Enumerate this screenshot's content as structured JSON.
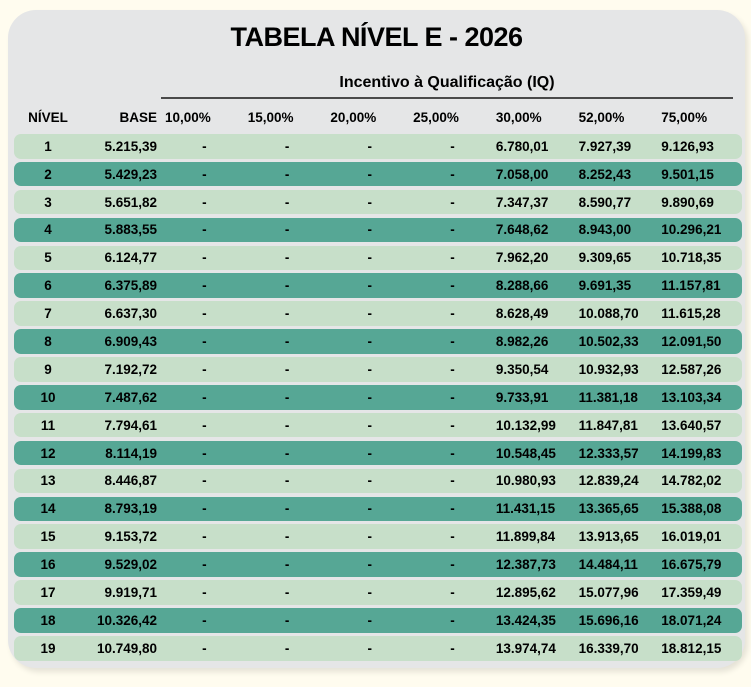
{
  "title": "TABELA NÍVEL E - 2026",
  "table": {
    "group_header": "Incentivo à Qualificação (IQ)",
    "columns": [
      "NÍVEL",
      "BASE",
      "10,00%",
      "15,00%",
      "20,00%",
      "25,00%",
      "30,00%",
      "52,00%",
      "75,00%"
    ],
    "rows": [
      [
        "1",
        "5.215,39",
        "-",
        "-",
        "-",
        "-",
        "6.780,01",
        "7.927,39",
        "9.126,93"
      ],
      [
        "2",
        "5.429,23",
        "-",
        "-",
        "-",
        "-",
        "7.058,00",
        "8.252,43",
        "9.501,15"
      ],
      [
        "3",
        "5.651,82",
        "-",
        "-",
        "-",
        "-",
        "7.347,37",
        "8.590,77",
        "9.890,69"
      ],
      [
        "4",
        "5.883,55",
        "-",
        "-",
        "-",
        "-",
        "7.648,62",
        "8.943,00",
        "10.296,21"
      ],
      [
        "5",
        "6.124,77",
        "-",
        "-",
        "-",
        "-",
        "7.962,20",
        "9.309,65",
        "10.718,35"
      ],
      [
        "6",
        "6.375,89",
        "-",
        "-",
        "-",
        "-",
        "8.288,66",
        "9.691,35",
        "11.157,81"
      ],
      [
        "7",
        "6.637,30",
        "-",
        "-",
        "-",
        "-",
        "8.628,49",
        "10.088,70",
        "11.615,28"
      ],
      [
        "8",
        "6.909,43",
        "-",
        "-",
        "-",
        "-",
        "8.982,26",
        "10.502,33",
        "12.091,50"
      ],
      [
        "9",
        "7.192,72",
        "-",
        "-",
        "-",
        "-",
        "9.350,54",
        "10.932,93",
        "12.587,26"
      ],
      [
        "10",
        "7.487,62",
        "-",
        "-",
        "-",
        "-",
        "9.733,91",
        "11.381,18",
        "13.103,34"
      ],
      [
        "11",
        "7.794,61",
        "-",
        "-",
        "-",
        "-",
        "10.132,99",
        "11.847,81",
        "13.640,57"
      ],
      [
        "12",
        "8.114,19",
        "-",
        "-",
        "-",
        "-",
        "10.548,45",
        "12.333,57",
        "14.199,83"
      ],
      [
        "13",
        "8.446,87",
        "-",
        "-",
        "-",
        "-",
        "10.980,93",
        "12.839,24",
        "14.782,02"
      ],
      [
        "14",
        "8.793,19",
        "-",
        "-",
        "-",
        "-",
        "11.431,15",
        "13.365,65",
        "15.388,08"
      ],
      [
        "15",
        "9.153,72",
        "-",
        "-",
        "-",
        "-",
        "11.899,84",
        "13.913,65",
        "16.019,01"
      ],
      [
        "16",
        "9.529,02",
        "-",
        "-",
        "-",
        "-",
        "12.387,73",
        "14.484,11",
        "16.675,79"
      ],
      [
        "17",
        "9.919,71",
        "-",
        "-",
        "-",
        "-",
        "12.895,62",
        "15.077,96",
        "17.359,49"
      ],
      [
        "18",
        "10.326,42",
        "-",
        "-",
        "-",
        "-",
        "13.424,35",
        "15.696,16",
        "18.071,24"
      ],
      [
        "19",
        "10.749,80",
        "-",
        "-",
        "-",
        "-",
        "13.974,74",
        "16.339,70",
        "18.812,15"
      ]
    ]
  },
  "colors": {
    "page_background": "#FFFCEF",
    "card_background": "#E5E6E7",
    "row_light": "#C7DFC9",
    "row_dark": "#56A795",
    "text": "#000000"
  }
}
